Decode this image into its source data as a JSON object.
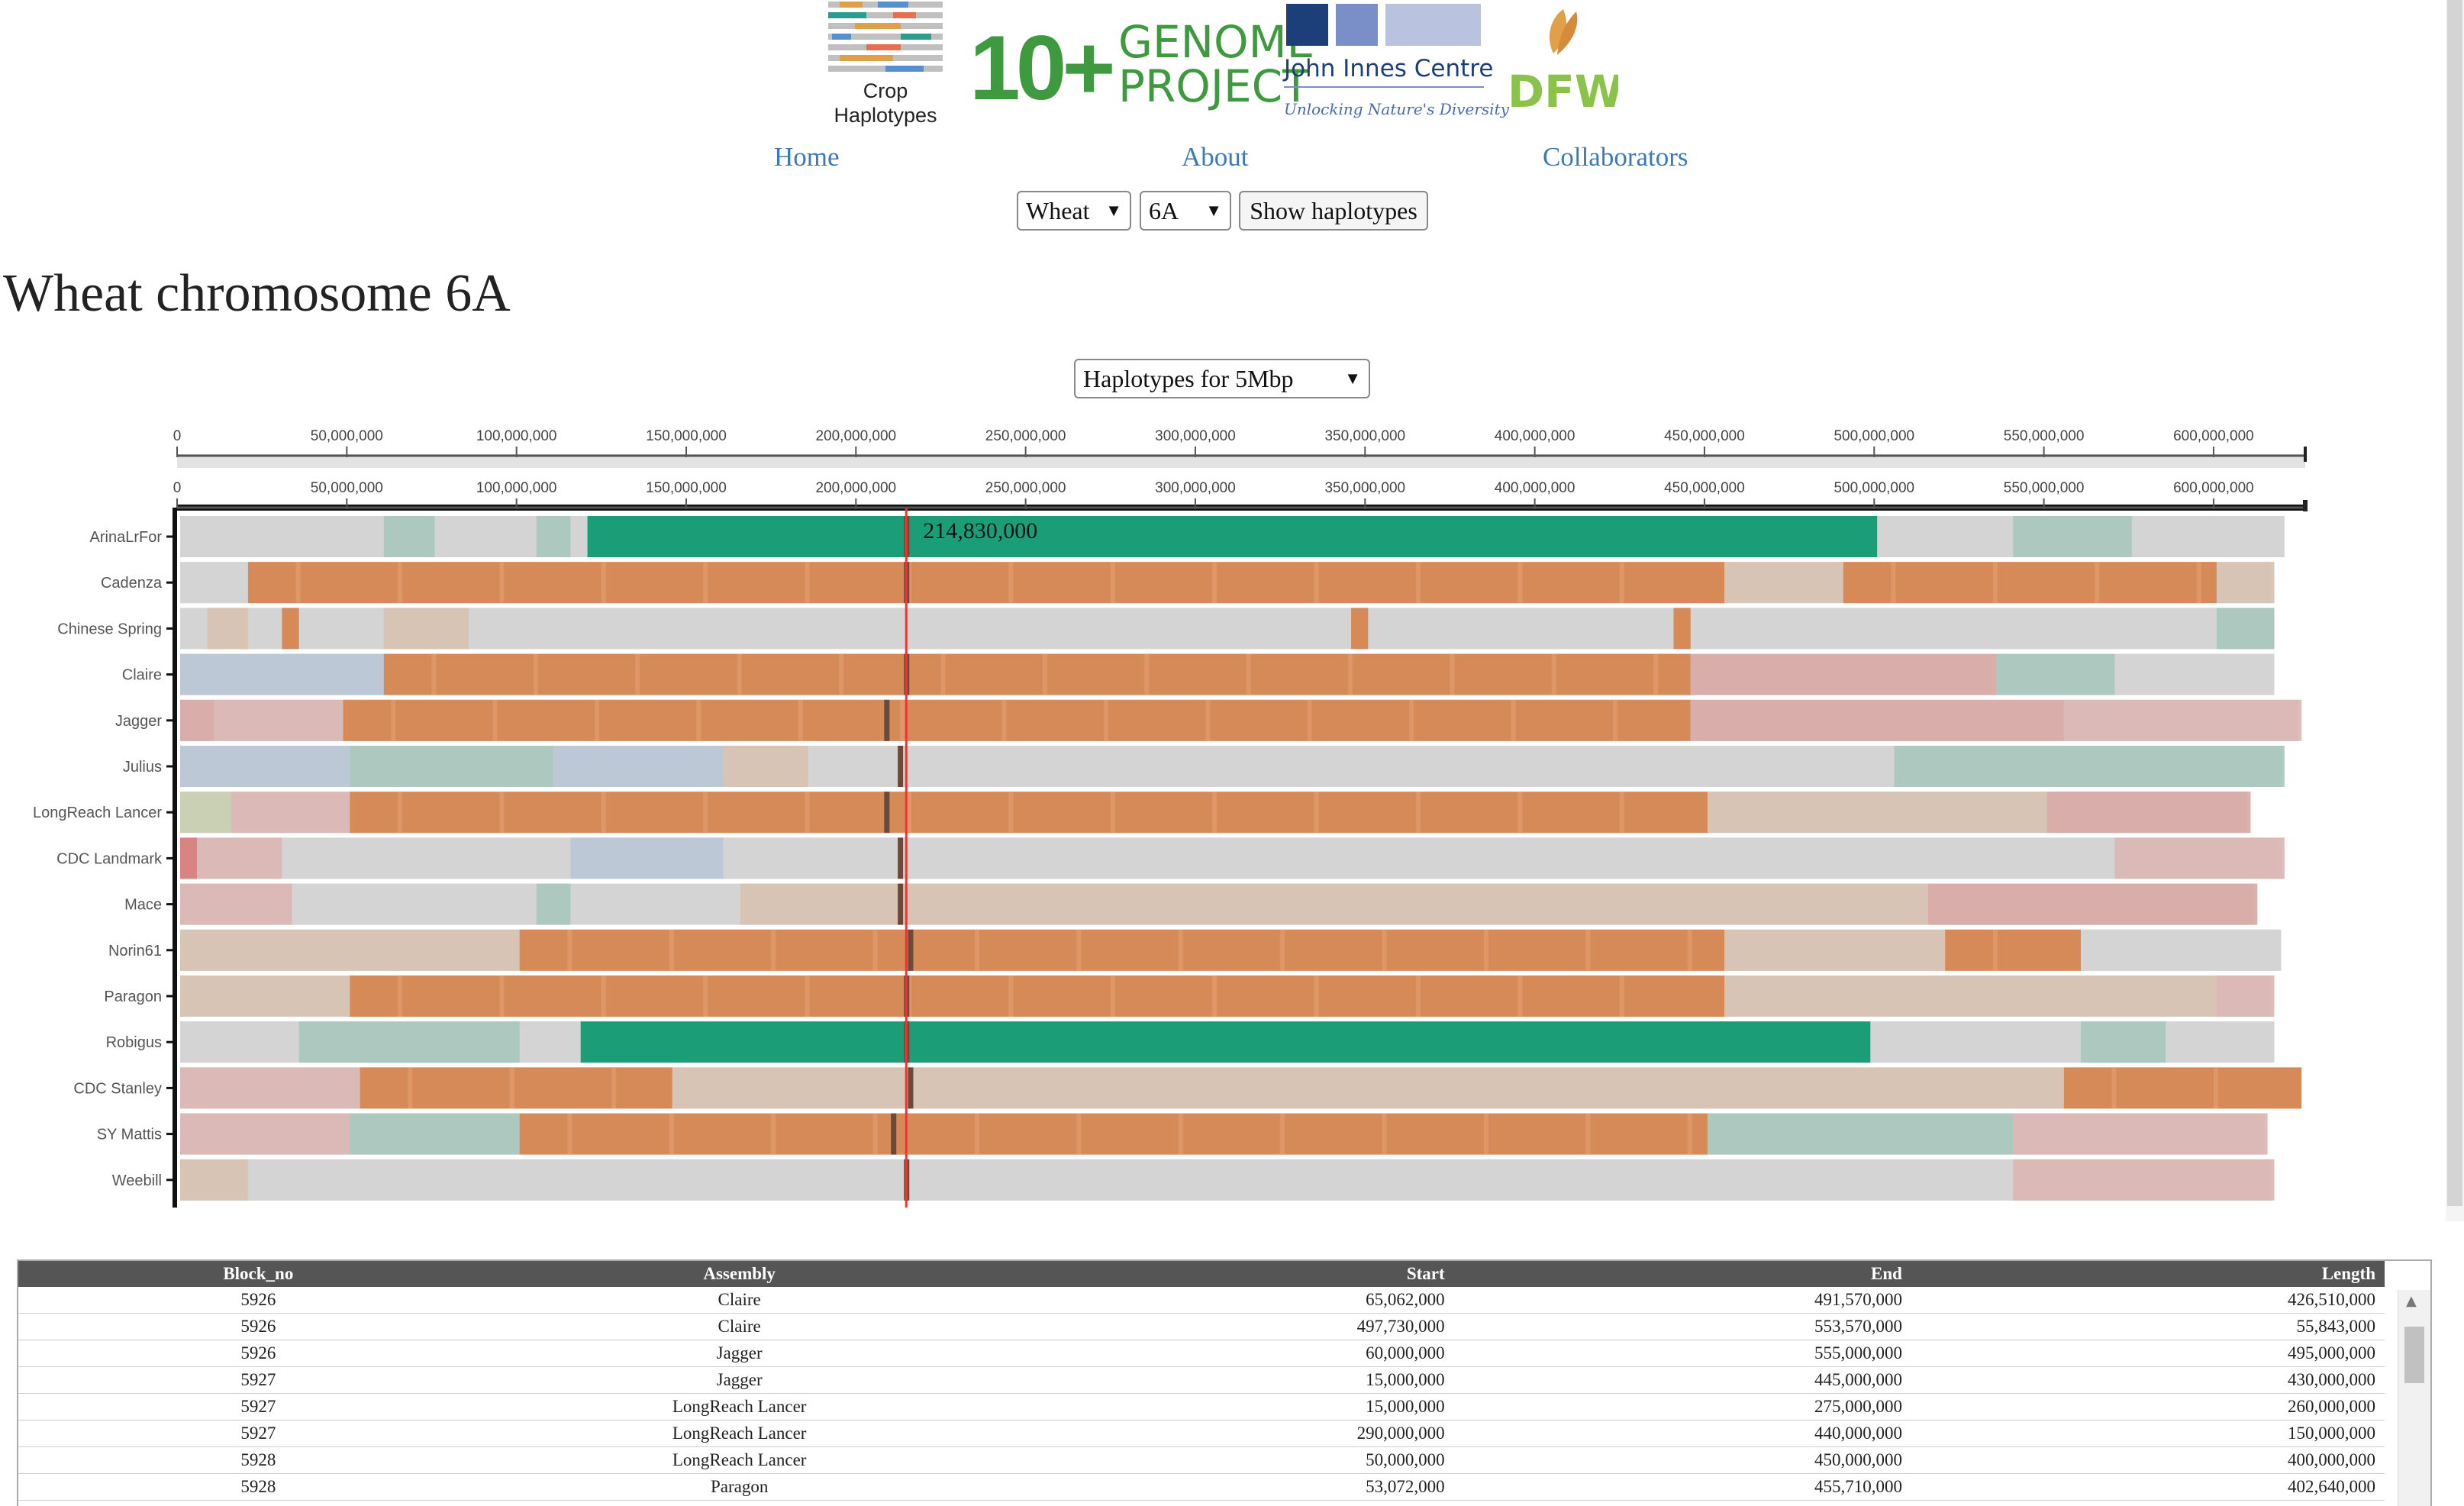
{
  "logos": {
    "crop_line1": "Crop",
    "crop_line2": "Haplotypes",
    "genome_prefix": "10+",
    "genome_line1": "GENOME",
    "genome_line2": "PROJECT",
    "jic_name": "John Innes Centre",
    "jic_tagline": "Unlocking Nature's Diversity",
    "dfw": "DFW",
    "colors": {
      "green": "#3f9a3f",
      "navy": "#1c3f7a",
      "jicLight": "#b9c3e0",
      "jicMid": "#7a8fc7",
      "dfw": "#8bc34a",
      "wheatGold": "#e0a04a"
    }
  },
  "nav": {
    "home": "Home",
    "about": "About",
    "collaborators": "Collaborators"
  },
  "controls": {
    "species": "Wheat",
    "chromosome": "6A",
    "show_button": "Show haplotypes",
    "window": "Haplotypes for 5Mbp"
  },
  "page_title": "Wheat chromosome 6A",
  "chart_data": {
    "type": "haplotype-blocks",
    "xlim": [
      0,
      627000000
    ],
    "ticks": [
      {
        "v": 0,
        "label": "0"
      },
      {
        "v": 50000000,
        "label": "50,000,000"
      },
      {
        "v": 100000000,
        "label": "100,000,000"
      },
      {
        "v": 150000000,
        "label": "150,000,000"
      },
      {
        "v": 200000000,
        "label": "200,000,000"
      },
      {
        "v": 250000000,
        "label": "250,000,000"
      },
      {
        "v": 300000000,
        "label": "300,000,000"
      },
      {
        "v": 350000000,
        "label": "350,000,000"
      },
      {
        "v": 400000000,
        "label": "400,000,000"
      },
      {
        "v": 450000000,
        "label": "450,000,000"
      },
      {
        "v": 500000000,
        "label": "500,000,000"
      },
      {
        "v": 550000000,
        "label": "550,000,000"
      },
      {
        "v": 600000000,
        "label": "600,000,000"
      }
    ],
    "cursor": {
      "position": 214830000,
      "label": "214,830,000"
    },
    "colors": {
      "base": "#d4d4d4",
      "orange": "#d68a58",
      "green": "#1b9e77",
      "cursor": "#e53935",
      "marker": "#6b4a3a"
    },
    "rows": [
      {
        "name": "ArinaLrFor",
        "end": 620000000,
        "blocks": [
          {
            "s": 0,
            "e": 120000000,
            "c": "gray"
          },
          {
            "s": 120000000,
            "e": 500000000,
            "c": "green"
          },
          {
            "s": 500000000,
            "e": 620000000,
            "c": "gray"
          },
          {
            "s": 60000000,
            "e": 75000000,
            "c": "teal"
          },
          {
            "s": 105000000,
            "e": 115000000,
            "c": "teal"
          },
          {
            "s": 540000000,
            "e": 575000000,
            "c": "teal"
          }
        ]
      },
      {
        "name": "Cadenza",
        "end": 617000000,
        "blocks": [
          {
            "s": 0,
            "e": 20000000,
            "c": "gray"
          },
          {
            "s": 20000000,
            "e": 455000000,
            "c": "orange"
          },
          {
            "s": 455000000,
            "e": 490000000,
            "c": "tan"
          },
          {
            "s": 490000000,
            "e": 600000000,
            "c": "orange"
          },
          {
            "s": 600000000,
            "e": 617000000,
            "c": "tan"
          }
        ]
      },
      {
        "name": "Chinese Spring",
        "end": 617000000,
        "blocks": [
          {
            "s": 0,
            "e": 617000000,
            "c": "gray"
          },
          {
            "s": 8000000,
            "e": 20000000,
            "c": "tan"
          },
          {
            "s": 30000000,
            "e": 35000000,
            "c": "orange"
          },
          {
            "s": 60000000,
            "e": 85000000,
            "c": "tan"
          },
          {
            "s": 345000000,
            "e": 350000000,
            "c": "orange"
          },
          {
            "s": 440000000,
            "e": 445000000,
            "c": "orange"
          },
          {
            "s": 600000000,
            "e": 617000000,
            "c": "teal"
          }
        ]
      },
      {
        "name": "Claire",
        "end": 617000000,
        "blocks": [
          {
            "s": 0,
            "e": 60000000,
            "c": "blue"
          },
          {
            "s": 60000000,
            "e": 445000000,
            "c": "orange"
          },
          {
            "s": 445000000,
            "e": 535000000,
            "c": "rose"
          },
          {
            "s": 535000000,
            "e": 570000000,
            "c": "teal"
          },
          {
            "s": 570000000,
            "e": 617000000,
            "c": "gray"
          }
        ]
      },
      {
        "name": "Jagger",
        "end": 625000000,
        "blocks": [
          {
            "s": 0,
            "e": 10000000,
            "c": "rose"
          },
          {
            "s": 10000000,
            "e": 48000000,
            "c": "pink"
          },
          {
            "s": 48000000,
            "e": 445000000,
            "c": "orange"
          },
          {
            "s": 445000000,
            "e": 555000000,
            "c": "rose"
          },
          {
            "s": 555000000,
            "e": 625000000,
            "c": "pink"
          }
        ]
      },
      {
        "name": "Julius",
        "end": 620000000,
        "blocks": [
          {
            "s": 0,
            "e": 50000000,
            "c": "blue"
          },
          {
            "s": 50000000,
            "e": 110000000,
            "c": "teal"
          },
          {
            "s": 110000000,
            "e": 160000000,
            "c": "blue"
          },
          {
            "s": 160000000,
            "e": 185000000,
            "c": "tan"
          },
          {
            "s": 185000000,
            "e": 505000000,
            "c": "gray"
          },
          {
            "s": 505000000,
            "e": 620000000,
            "c": "teal"
          }
        ]
      },
      {
        "name": "LongReach Lancer",
        "end": 610000000,
        "blocks": [
          {
            "s": 0,
            "e": 15000000,
            "c": "olive"
          },
          {
            "s": 15000000,
            "e": 50000000,
            "c": "pink"
          },
          {
            "s": 50000000,
            "e": 450000000,
            "c": "orange"
          },
          {
            "s": 450000000,
            "e": 550000000,
            "c": "tan"
          },
          {
            "s": 550000000,
            "e": 610000000,
            "c": "rose"
          }
        ]
      },
      {
        "name": "CDC Landmark",
        "end": 620000000,
        "blocks": [
          {
            "s": 0,
            "e": 5000000,
            "c": "red"
          },
          {
            "s": 5000000,
            "e": 30000000,
            "c": "pink"
          },
          {
            "s": 30000000,
            "e": 115000000,
            "c": "gray"
          },
          {
            "s": 115000000,
            "e": 160000000,
            "c": "blue"
          },
          {
            "s": 160000000,
            "e": 570000000,
            "c": "gray"
          },
          {
            "s": 570000000,
            "e": 620000000,
            "c": "pink"
          }
        ]
      },
      {
        "name": "Mace",
        "end": 612000000,
        "blocks": [
          {
            "s": 0,
            "e": 33000000,
            "c": "pink"
          },
          {
            "s": 33000000,
            "e": 105000000,
            "c": "gray"
          },
          {
            "s": 105000000,
            "e": 115000000,
            "c": "teal"
          },
          {
            "s": 165000000,
            "e": 515000000,
            "c": "tan"
          },
          {
            "s": 515000000,
            "e": 612000000,
            "c": "rose"
          }
        ]
      },
      {
        "name": "Norin61",
        "end": 619000000,
        "blocks": [
          {
            "s": 0,
            "e": 100000000,
            "c": "tan"
          },
          {
            "s": 100000000,
            "e": 455000000,
            "c": "orange"
          },
          {
            "s": 455000000,
            "e": 520000000,
            "c": "tan"
          },
          {
            "s": 520000000,
            "e": 560000000,
            "c": "orange"
          },
          {
            "s": 560000000,
            "e": 619000000,
            "c": "gray"
          }
        ]
      },
      {
        "name": "Paragon",
        "end": 617000000,
        "blocks": [
          {
            "s": 0,
            "e": 50000000,
            "c": "tan"
          },
          {
            "s": 50000000,
            "e": 455000000,
            "c": "orange"
          },
          {
            "s": 455000000,
            "e": 600000000,
            "c": "tan"
          },
          {
            "s": 600000000,
            "e": 617000000,
            "c": "pink"
          }
        ]
      },
      {
        "name": "Robigus",
        "end": 617000000,
        "blocks": [
          {
            "s": 0,
            "e": 118000000,
            "c": "gray"
          },
          {
            "s": 118000000,
            "e": 498000000,
            "c": "green"
          },
          {
            "s": 498000000,
            "e": 617000000,
            "c": "gray"
          },
          {
            "s": 35000000,
            "e": 100000000,
            "c": "teal"
          },
          {
            "s": 560000000,
            "e": 585000000,
            "c": "teal"
          }
        ]
      },
      {
        "name": "CDC Stanley",
        "end": 625000000,
        "blocks": [
          {
            "s": 0,
            "e": 53000000,
            "c": "pink"
          },
          {
            "s": 53000000,
            "e": 145000000,
            "c": "orange"
          },
          {
            "s": 145000000,
            "e": 555000000,
            "c": "tan"
          },
          {
            "s": 555000000,
            "e": 625000000,
            "c": "orange"
          }
        ]
      },
      {
        "name": "SY Mattis",
        "end": 615000000,
        "blocks": [
          {
            "s": 0,
            "e": 50000000,
            "c": "pink"
          },
          {
            "s": 50000000,
            "e": 100000000,
            "c": "teal"
          },
          {
            "s": 100000000,
            "e": 450000000,
            "c": "orange"
          },
          {
            "s": 450000000,
            "e": 540000000,
            "c": "teal"
          },
          {
            "s": 540000000,
            "e": 615000000,
            "c": "pink"
          }
        ]
      },
      {
        "name": "Weebill",
        "end": 617000000,
        "blocks": [
          {
            "s": 0,
            "e": 20000000,
            "c": "tan"
          },
          {
            "s": 20000000,
            "e": 540000000,
            "c": "gray"
          },
          {
            "s": 540000000,
            "e": 617000000,
            "c": "pink"
          }
        ]
      }
    ],
    "markers": [
      {
        "row": 0,
        "pos": 214830000
      },
      {
        "row": 1,
        "pos": 214830000
      },
      {
        "row": 3,
        "pos": 214830000
      },
      {
        "row": 4,
        "pos": 209000000
      },
      {
        "row": 5,
        "pos": 213000000
      },
      {
        "row": 6,
        "pos": 209000000
      },
      {
        "row": 7,
        "pos": 213000000
      },
      {
        "row": 8,
        "pos": 213000000
      },
      {
        "row": 9,
        "pos": 216000000
      },
      {
        "row": 10,
        "pos": 214830000
      },
      {
        "row": 11,
        "pos": 214830000
      },
      {
        "row": 12,
        "pos": 216000000
      },
      {
        "row": 13,
        "pos": 211000000
      },
      {
        "row": 14,
        "pos": 214830000
      }
    ]
  },
  "table": {
    "headers": [
      "Block_no",
      "Assembly",
      "Start",
      "End",
      "Length"
    ],
    "rows": [
      [
        "5926",
        "Claire",
        "65,062,000",
        "491,570,000",
        "426,510,000"
      ],
      [
        "5926",
        "Claire",
        "497,730,000",
        "553,570,000",
        "55,843,000"
      ],
      [
        "5926",
        "Jagger",
        "60,000,000",
        "555,000,000",
        "495,000,000"
      ],
      [
        "5927",
        "Jagger",
        "15,000,000",
        "445,000,000",
        "430,000,000"
      ],
      [
        "5927",
        "LongReach Lancer",
        "15,000,000",
        "275,000,000",
        "260,000,000"
      ],
      [
        "5927",
        "LongReach Lancer",
        "290,000,000",
        "440,000,000",
        "150,000,000"
      ],
      [
        "5928",
        "LongReach Lancer",
        "50,000,000",
        "450,000,000",
        "400,000,000"
      ],
      [
        "5928",
        "Paragon",
        "53,072,000",
        "455,710,000",
        "402,640,000"
      ]
    ]
  }
}
